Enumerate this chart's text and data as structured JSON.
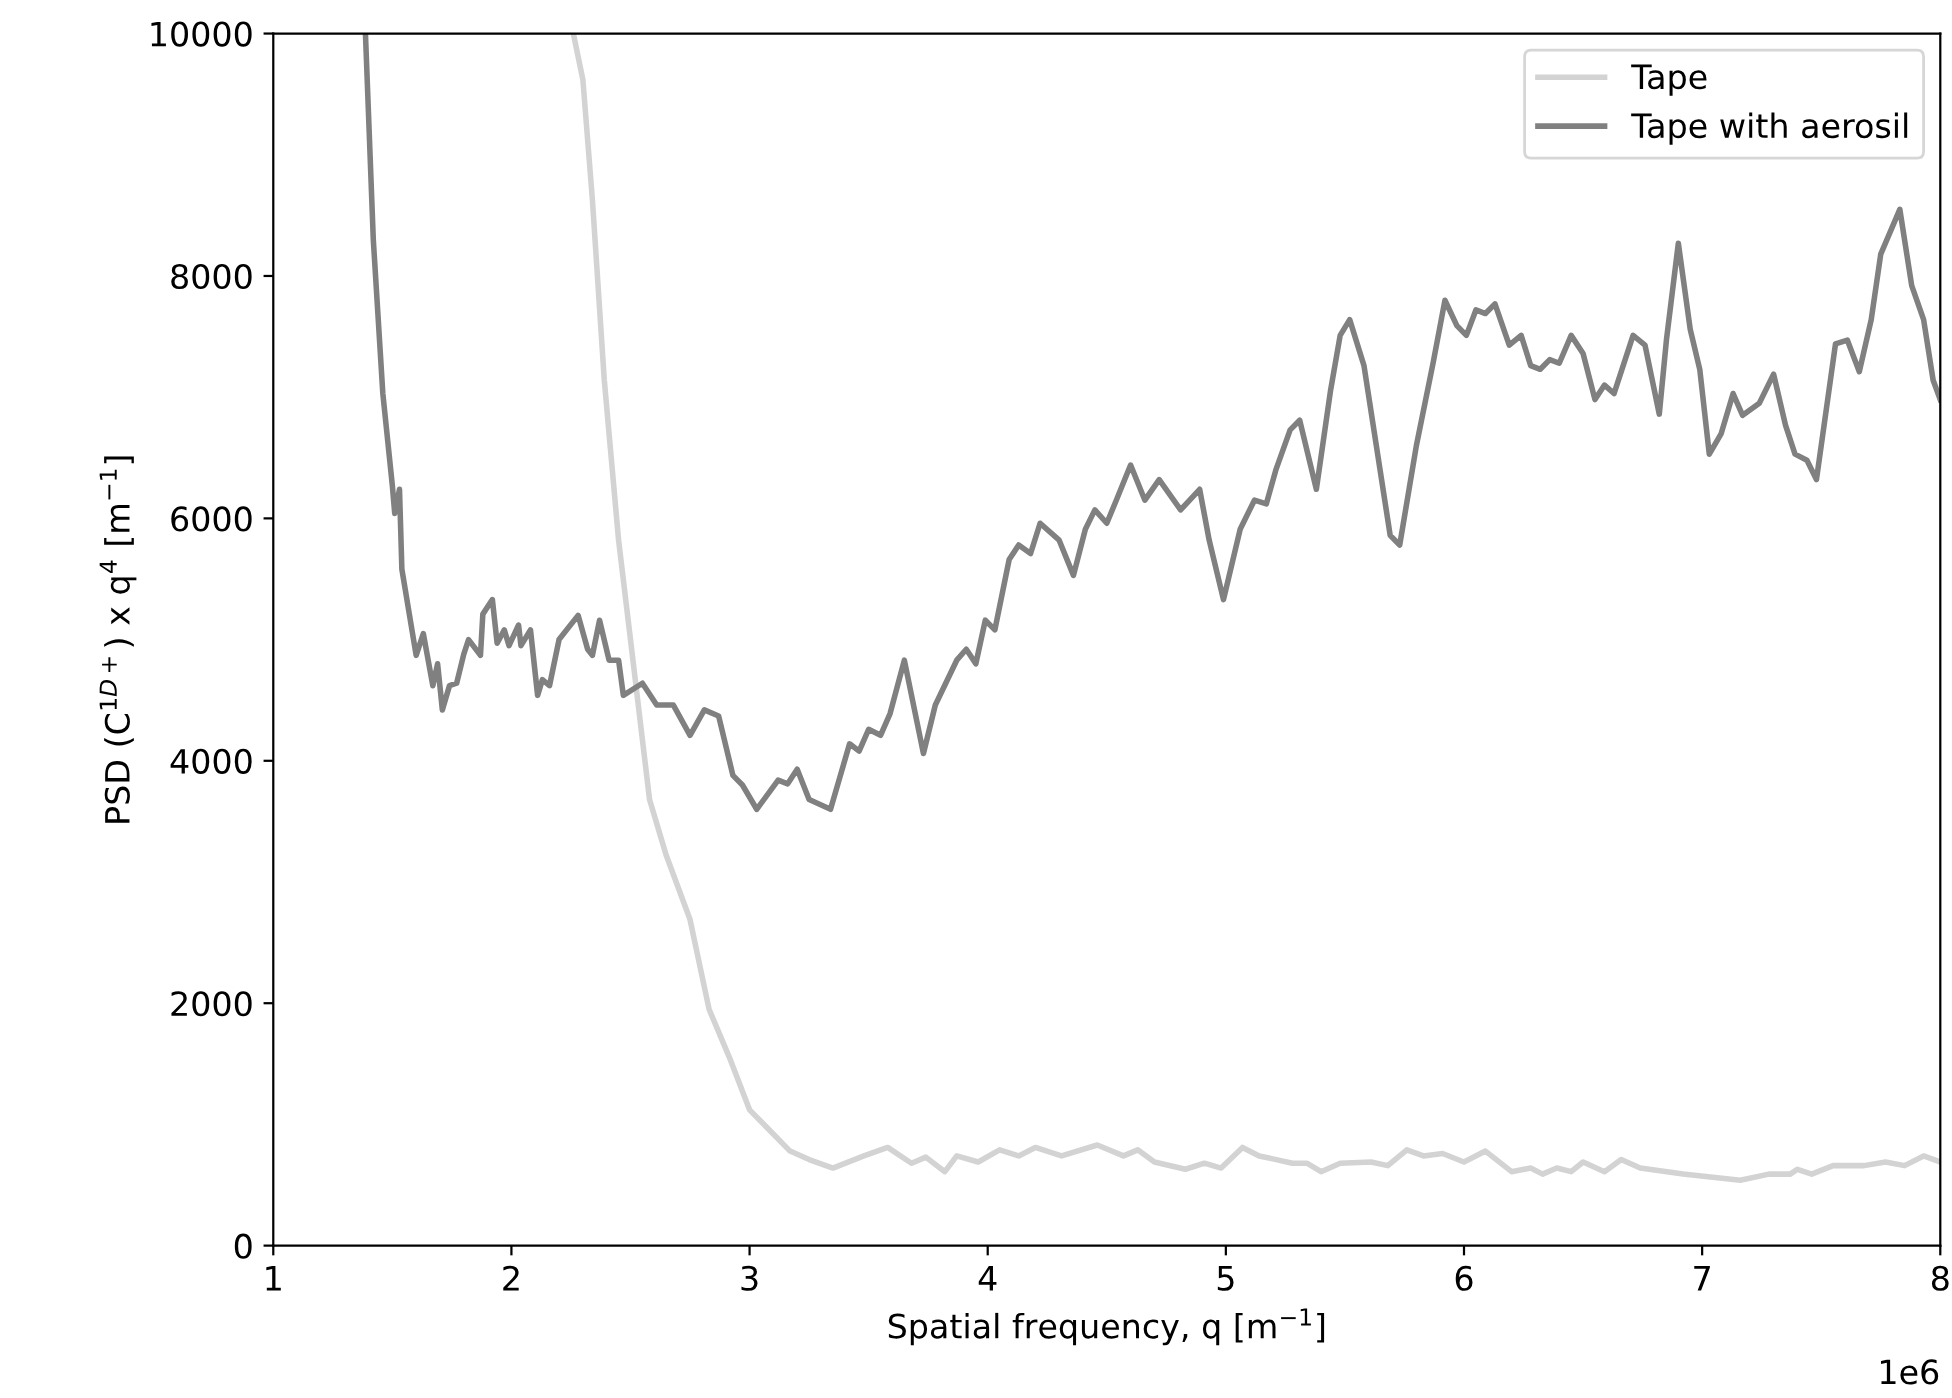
{
  "chart_data": {
    "type": "line",
    "xlabel": "Spatial frequency, q [m$^{−1}$]",
    "ylabel": "PSD (C$^{1D+}$) x q$^{4}$ [m$^{−1}$]",
    "annotations": [
      "1e6"
    ],
    "xlim": [
      1,
      8
    ],
    "xticks": [
      1,
      2,
      3,
      4,
      5,
      6,
      7,
      8
    ],
    "ylim": [
      0,
      10000
    ],
    "yticks": [
      0,
      2000,
      4000,
      6000,
      8000,
      10000
    ],
    "grid": false,
    "legend": "top right",
    "line_style": "solid",
    "marker": "none",
    "series": [
      {
        "name": "Tape",
        "color": "#d3d3d3",
        "x": [
          2.26,
          2.3,
          2.34,
          2.39,
          2.45,
          2.52,
          2.58,
          2.65,
          2.75,
          2.83,
          2.92,
          3.0,
          3.08,
          3.17,
          3.25,
          3.35,
          3.48,
          3.58,
          3.68,
          3.74,
          3.82,
          3.87,
          3.96,
          4.05,
          4.13,
          4.2,
          4.31,
          4.46,
          4.57,
          4.63,
          4.7,
          4.83,
          4.91,
          4.98,
          5.07,
          5.14,
          5.28,
          5.34,
          5.4,
          5.48,
          5.61,
          5.68,
          5.76,
          5.83,
          5.91,
          6.0,
          6.09,
          6.2,
          6.28,
          6.33,
          6.39,
          6.45,
          6.5,
          6.59,
          6.66,
          6.74,
          6.92,
          7.16,
          7.28,
          7.37,
          7.4,
          7.46,
          7.55,
          7.68,
          7.77,
          7.85,
          7.93,
          8.0
        ],
        "values": [
          10000,
          9620,
          8630,
          7140,
          5820,
          4670,
          3680,
          3220,
          2690,
          1950,
          1530,
          1120,
          960,
          780,
          710,
          640,
          740,
          810,
          680,
          730,
          610,
          740,
          690,
          790,
          740,
          810,
          740,
          830,
          740,
          790,
          690,
          630,
          680,
          640,
          810,
          740,
          680,
          680,
          610,
          680,
          690,
          660,
          790,
          740,
          760,
          690,
          780,
          610,
          640,
          590,
          640,
          610,
          690,
          610,
          710,
          640,
          590,
          540,
          590,
          590,
          630,
          590,
          660,
          660,
          690,
          660,
          740,
          690
        ]
      },
      {
        "name": "Tape with aerosil",
        "color": "#808080",
        "x": [
          1.387,
          1.42,
          1.46,
          1.5,
          1.51,
          1.53,
          1.54,
          1.6,
          1.63,
          1.67,
          1.69,
          1.71,
          1.74,
          1.77,
          1.8,
          1.82,
          1.87,
          1.88,
          1.92,
          1.94,
          1.97,
          1.99,
          2.03,
          2.04,
          2.08,
          2.11,
          2.13,
          2.16,
          2.2,
          2.28,
          2.32,
          2.34,
          2.37,
          2.41,
          2.45,
          2.47,
          2.55,
          2.61,
          2.68,
          2.75,
          2.81,
          2.87,
          2.93,
          2.97,
          3.03,
          3.12,
          3.16,
          3.2,
          3.25,
          3.34,
          3.42,
          3.46,
          3.5,
          3.55,
          3.59,
          3.65,
          3.73,
          3.78,
          3.87,
          3.91,
          3.95,
          3.99,
          4.03,
          4.09,
          4.13,
          4.18,
          4.22,
          4.3,
          4.36,
          4.41,
          4.45,
          4.5,
          4.54,
          4.6,
          4.66,
          4.72,
          4.81,
          4.89,
          4.93,
          4.99,
          5.06,
          5.12,
          5.17,
          5.21,
          5.27,
          5.31,
          5.38,
          5.44,
          5.48,
          5.52,
          5.58,
          5.69,
          5.73,
          5.8,
          5.87,
          5.92,
          5.97,
          6.01,
          6.05,
          6.09,
          6.13,
          6.19,
          6.24,
          6.28,
          6.32,
          6.36,
          6.4,
          6.45,
          6.5,
          6.55,
          6.59,
          6.63,
          6.71,
          6.76,
          6.82,
          6.85,
          6.9,
          6.95,
          6.99,
          7.03,
          7.08,
          7.13,
          7.17,
          7.24,
          7.3,
          7.35,
          7.39,
          7.44,
          7.48,
          7.56,
          7.61,
          7.66,
          7.71,
          7.75,
          7.83,
          7.88,
          7.93,
          7.97,
          8.0
        ],
        "values": [
          10000,
          8300,
          7030,
          6270,
          6040,
          6240,
          5580,
          4870,
          5050,
          4620,
          4800,
          4420,
          4620,
          4640,
          4880,
          5000,
          4870,
          5210,
          5330,
          4970,
          5080,
          4950,
          5120,
          4950,
          5080,
          4540,
          4670,
          4620,
          5000,
          5200,
          4920,
          4870,
          5160,
          4830,
          4830,
          4540,
          4640,
          4460,
          4460,
          4210,
          4420,
          4370,
          3880,
          3800,
          3600,
          3840,
          3810,
          3930,
          3680,
          3600,
          4140,
          4080,
          4260,
          4210,
          4390,
          4830,
          4060,
          4460,
          4830,
          4920,
          4800,
          5160,
          5080,
          5660,
          5780,
          5710,
          5960,
          5820,
          5530,
          5910,
          6070,
          5960,
          6150,
          6440,
          6150,
          6320,
          6070,
          6240,
          5820,
          5330,
          5910,
          6150,
          6120,
          6400,
          6730,
          6810,
          6240,
          7060,
          7510,
          7640,
          7260,
          5860,
          5780,
          6600,
          7280,
          7800,
          7590,
          7510,
          7720,
          7690,
          7770,
          7430,
          7510,
          7260,
          7230,
          7310,
          7280,
          7510,
          7360,
          6980,
          7100,
          7030,
          7510,
          7430,
          6860,
          7470,
          8270,
          7560,
          7230,
          6530,
          6700,
          7030,
          6850,
          6950,
          7190,
          6770,
          6530,
          6480,
          6320,
          7440,
          7470,
          7210,
          7640,
          8180,
          8550,
          7920,
          7640,
          7140,
          6980
        ]
      }
    ]
  }
}
